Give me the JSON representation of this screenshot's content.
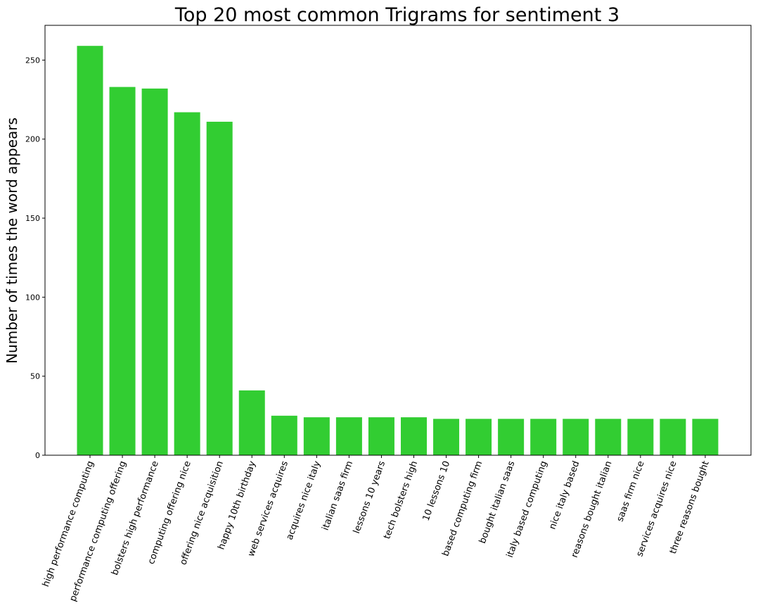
{
  "chart_data": {
    "type": "bar",
    "title": "Top 20 most common Trigrams for sentiment 3",
    "xlabel": "",
    "ylabel": "Number of times the word appears",
    "categories": [
      "high performance computing",
      "performance computing offering",
      "bolsters high performance",
      "computing offering nice",
      "offering nice acquisition",
      "happy 10th birthday",
      "web services acquires",
      "acquires nice italy",
      "italian saas firm",
      "lessons 10 years",
      "tech bolsters high",
      "10 lessons 10",
      "based computing firm",
      "bought italian saas",
      "italy based computing",
      "nice italy based",
      "reasons bought italian",
      "saas firm nice",
      "services acquires nice",
      "three reasons bought"
    ],
    "values": [
      259,
      233,
      232,
      217,
      211,
      41,
      25,
      24,
      24,
      24,
      24,
      23,
      23,
      23,
      23,
      23,
      23,
      23,
      23,
      23
    ],
    "ylim": [
      0,
      272
    ],
    "yticks": [
      0,
      50,
      100,
      150,
      200,
      250
    ],
    "bar_color": "#32cd32",
    "grid": false
  }
}
